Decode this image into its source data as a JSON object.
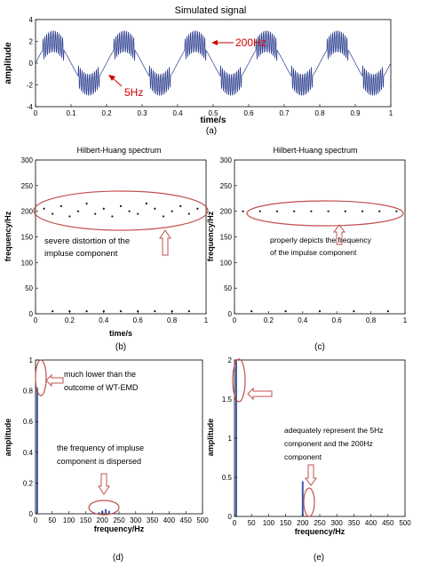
{
  "figure": {
    "panel_a": {
      "title": "Simulated signal",
      "xlabel": "time/s",
      "ylabel": "amplitude",
      "panel_label": "(a)",
      "annotations": [
        "200Hz",
        "5Hz"
      ]
    },
    "panel_b": {
      "title": "Hilbert-Huang spectrum",
      "xlabel": "time/s",
      "ylabel": "frequency/Hz",
      "panel_label": "(b)",
      "annotation_lines": [
        "severe distortion of the",
        "impluse component"
      ]
    },
    "panel_c": {
      "title": "Hilbert-Huang spectrum",
      "ylabel": "frequency/Hz",
      "panel_label": "(c)",
      "annotation_lines": [
        "properly depicts the frequency",
        "of the impulse component"
      ]
    },
    "panel_d": {
      "xlabel": "frequency/Hz",
      "ylabel": "amplitude",
      "panel_label": "(d)",
      "annotation1_lines": [
        "much lower than the",
        "outcome of WT-EMD"
      ],
      "annotation2_lines": [
        "the frequency of impluse",
        "component is dispersed"
      ]
    },
    "panel_e": {
      "xlabel": "frequency/Hz",
      "ylabel": "amplitude",
      "panel_label": "(e)",
      "annotation_lines": [
        "adequately represent the 5Hz",
        "component and the 200Hz",
        "component"
      ]
    }
  },
  "chart_data": [
    {
      "type": "line",
      "title": "Simulated signal",
      "xlabel": "time/s",
      "ylabel": "amplitude",
      "xlim": [
        0,
        1
      ],
      "ylim": [
        -4,
        4
      ],
      "xticks": [
        "0",
        "0.1",
        "0.2",
        "0.3",
        "0.4",
        "0.5",
        "0.6",
        "0.7",
        "0.8",
        "0.9",
        "1"
      ],
      "yticks": [
        "-4",
        "-2",
        "0",
        "2",
        "4"
      ],
      "components": [
        {
          "kind": "sine",
          "frequency_hz": 5,
          "amplitude": 2
        },
        {
          "kind": "impulse",
          "frequency_hz": 200,
          "amplitude": 1
        }
      ]
    },
    {
      "type": "scatter",
      "title": "Hilbert-Huang spectrum",
      "xlabel": "time/s",
      "ylabel": "frequency/Hz",
      "xlim": [
        0,
        1
      ],
      "ylim": [
        0,
        300
      ],
      "xticks": [
        "0",
        "0.2",
        "0.4",
        "0.6",
        "0.8",
        "1"
      ],
      "yticks": [
        "0",
        "50",
        "100",
        "150",
        "200",
        "250",
        "300"
      ],
      "series": [
        {
          "values": [
            [
              0.05,
              205
            ],
            [
              0.1,
              195
            ],
            [
              0.15,
              210
            ],
            [
              0.2,
              190
            ],
            [
              0.25,
              200
            ],
            [
              0.3,
              215
            ],
            [
              0.35,
              195
            ],
            [
              0.4,
              205
            ],
            [
              0.45,
              190
            ],
            [
              0.5,
              210
            ],
            [
              0.55,
              200
            ],
            [
              0.6,
              195
            ],
            [
              0.65,
              215
            ],
            [
              0.7,
              205
            ],
            [
              0.75,
              190
            ],
            [
              0.8,
              200
            ],
            [
              0.85,
              210
            ],
            [
              0.9,
              195
            ],
            [
              0.95,
              205
            ]
          ]
        },
        {
          "values": [
            [
              0.1,
              5
            ],
            [
              0.2,
              5
            ],
            [
              0.3,
              5
            ],
            [
              0.4,
              5
            ],
            [
              0.5,
              5
            ],
            [
              0.6,
              5
            ],
            [
              0.7,
              5
            ],
            [
              0.8,
              5
            ],
            [
              0.9,
              5
            ]
          ]
        }
      ]
    },
    {
      "type": "scatter",
      "title": "Hilbert-Huang spectrum",
      "ylabel": "frequency/Hz",
      "xlim": [
        0,
        1
      ],
      "ylim": [
        0,
        300
      ],
      "xticks": [
        "0",
        "0.2",
        "0.4",
        "0.6",
        "0.8",
        "1"
      ],
      "yticks": [
        "0",
        "50",
        "100",
        "150",
        "200",
        "250",
        "300"
      ],
      "series": [
        {
          "values": [
            [
              0.05,
              200
            ],
            [
              0.15,
              200
            ],
            [
              0.25,
              200
            ],
            [
              0.35,
              200
            ],
            [
              0.45,
              200
            ],
            [
              0.55,
              200
            ],
            [
              0.65,
              200
            ],
            [
              0.75,
              200
            ],
            [
              0.85,
              200
            ],
            [
              0.95,
              200
            ]
          ]
        },
        {
          "values": [
            [
              0.1,
              5
            ],
            [
              0.3,
              5
            ],
            [
              0.5,
              5
            ],
            [
              0.7,
              5
            ],
            [
              0.9,
              5
            ]
          ]
        }
      ]
    },
    {
      "type": "bar",
      "xlabel": "frequency/Hz",
      "ylabel": "amplitude",
      "xlim": [
        0,
        500
      ],
      "ylim": [
        0,
        1
      ],
      "xticks": [
        "0",
        "50",
        "100",
        "150",
        "200",
        "250",
        "300",
        "350",
        "400",
        "450",
        "500"
      ],
      "yticks": [
        "0",
        "0.2",
        "0.4",
        "0.6",
        "0.8",
        "1"
      ],
      "x": [
        5,
        190,
        200,
        210,
        220
      ],
      "values": [
        0.82,
        0.01,
        0.02,
        0.03,
        0.02
      ]
    },
    {
      "type": "bar",
      "xlabel": "frequency/Hz",
      "ylabel": "amplitude",
      "xlim": [
        0,
        500
      ],
      "ylim": [
        0,
        2
      ],
      "xticks": [
        "0",
        "50",
        "100",
        "150",
        "200",
        "250",
        "300",
        "350",
        "400",
        "450",
        "500"
      ],
      "yticks": [
        "0",
        "0.5",
        "1",
        "1.5",
        "2"
      ],
      "x": [
        5,
        200
      ],
      "values": [
        2.0,
        0.45
      ]
    }
  ]
}
